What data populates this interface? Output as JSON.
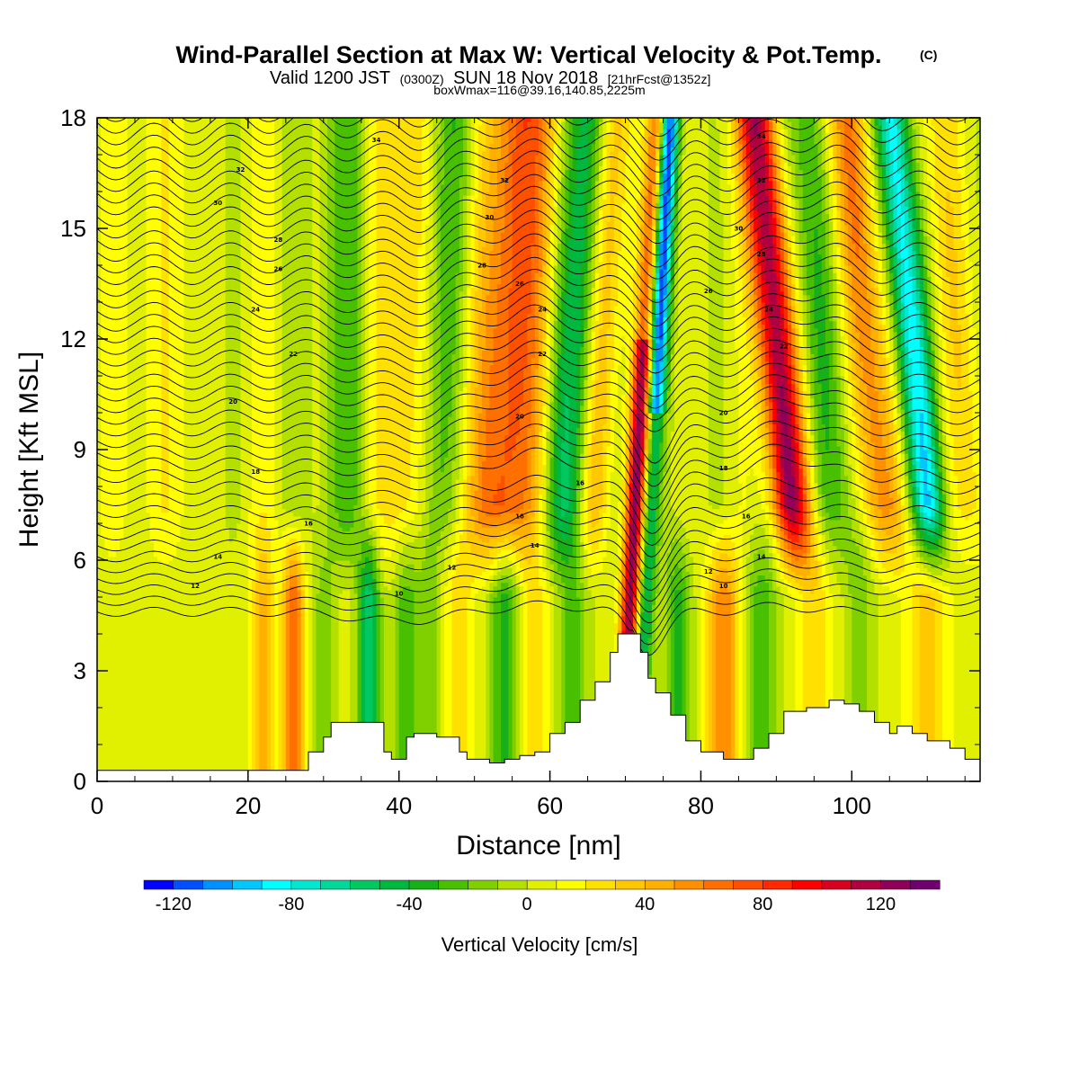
{
  "title": {
    "main": "Wind-Parallel Section at Max W: Vertical Velocity & Pot.Temp.",
    "main_sup": "(C)",
    "valid_prefix": "Valid 1200 JST",
    "valid_utc": "(0300Z)",
    "valid_date": "SUN 18 Nov 2018",
    "valid_fcst": "[21hrFcst@1352z]",
    "box": "boxWmax=116@39.16,140.85,2225m"
  },
  "chart_data": {
    "type": "heatmap",
    "xlabel": "Distance [nm]",
    "ylabel": "Height [Kft MSL]",
    "xlim": [
      0,
      117
    ],
    "ylim": [
      0,
      18
    ],
    "x_ticks": [
      0,
      20,
      40,
      60,
      80,
      100
    ],
    "y_ticks": [
      0,
      3,
      6,
      9,
      12,
      15,
      18
    ],
    "fill_variable": "Vertical Velocity [cm/s]",
    "contour_variable": "Pot.Temp.",
    "colorbar": {
      "title": "Vertical Velocity [cm/s]",
      "range": [
        -130,
        140
      ],
      "bin_width": 10,
      "tick_values": [
        -120,
        -80,
        -40,
        0,
        40,
        80,
        120
      ],
      "tick_labels": [
        "-120",
        "-80",
        "-40",
        "0",
        "40",
        "80",
        "120"
      ],
      "colors": [
        "#0000ff",
        "#0050ff",
        "#0090ff",
        "#00c8ff",
        "#00ffff",
        "#00e8d0",
        "#00d89a",
        "#00c860",
        "#00b840",
        "#18b018",
        "#48c000",
        "#80d000",
        "#b4e000",
        "#e0f000",
        "#ffff00",
        "#ffe000",
        "#ffc800",
        "#ffb000",
        "#ff9000",
        "#ff7000",
        "#ff5000",
        "#ff2800",
        "#ff0000",
        "#d80020",
        "#b00040",
        "#900058",
        "#700070"
      ]
    },
    "theta_contours": [
      {
        "x": 13,
        "y": 5.3,
        "label": "12"
      },
      {
        "x": 16,
        "y": 6.1,
        "label": "14"
      },
      {
        "x": 28,
        "y": 7.0,
        "label": "16"
      },
      {
        "x": 21,
        "y": 8.4,
        "label": "18"
      },
      {
        "x": 18,
        "y": 10.3,
        "label": "20"
      },
      {
        "x": 26,
        "y": 11.6,
        "label": "22"
      },
      {
        "x": 21,
        "y": 12.8,
        "label": "24"
      },
      {
        "x": 24,
        "y": 13.9,
        "label": "26"
      },
      {
        "x": 24,
        "y": 14.7,
        "label": "28"
      },
      {
        "x": 16,
        "y": 15.7,
        "label": "30"
      },
      {
        "x": 19,
        "y": 16.6,
        "label": "32"
      },
      {
        "x": 37,
        "y": 17.4,
        "label": "34"
      },
      {
        "x": 40,
        "y": 5.1,
        "label": "10"
      },
      {
        "x": 47,
        "y": 5.8,
        "label": "12"
      },
      {
        "x": 58,
        "y": 6.4,
        "label": "14"
      },
      {
        "x": 56,
        "y": 7.2,
        "label": "16"
      },
      {
        "x": 64,
        "y": 8.1,
        "label": "16"
      },
      {
        "x": 56,
        "y": 9.9,
        "label": "20"
      },
      {
        "x": 59,
        "y": 11.6,
        "label": "22"
      },
      {
        "x": 59,
        "y": 12.8,
        "label": "24"
      },
      {
        "x": 56,
        "y": 13.5,
        "label": "26"
      },
      {
        "x": 51,
        "y": 14.0,
        "label": "28"
      },
      {
        "x": 52,
        "y": 15.3,
        "label": "30"
      },
      {
        "x": 54,
        "y": 16.3,
        "label": "32"
      },
      {
        "x": 81,
        "y": 5.7,
        "label": "12"
      },
      {
        "x": 83,
        "y": 5.3,
        "label": "10"
      },
      {
        "x": 88,
        "y": 6.1,
        "label": "14"
      },
      {
        "x": 86,
        "y": 7.2,
        "label": "16"
      },
      {
        "x": 83,
        "y": 8.5,
        "label": "18"
      },
      {
        "x": 83,
        "y": 10.0,
        "label": "20"
      },
      {
        "x": 91,
        "y": 11.8,
        "label": "22"
      },
      {
        "x": 89,
        "y": 12.8,
        "label": "24"
      },
      {
        "x": 81,
        "y": 13.3,
        "label": "26"
      },
      {
        "x": 88,
        "y": 14.3,
        "label": "28"
      },
      {
        "x": 85,
        "y": 15.0,
        "label": "30"
      },
      {
        "x": 88,
        "y": 16.3,
        "label": "32"
      },
      {
        "x": 88,
        "y": 17.5,
        "label": "34"
      }
    ],
    "terrain": [
      [
        0,
        0.3
      ],
      [
        10,
        0.3
      ],
      [
        20,
        0.3
      ],
      [
        27,
        0.3
      ],
      [
        28,
        0.8
      ],
      [
        30,
        1.2
      ],
      [
        31,
        1.6
      ],
      [
        36,
        1.6
      ],
      [
        38,
        0.8
      ],
      [
        39,
        0.6
      ],
      [
        40,
        0.6
      ],
      [
        41,
        1.2
      ],
      [
        42,
        1.3
      ],
      [
        44,
        1.3
      ],
      [
        45,
        1.2
      ],
      [
        47,
        1.2
      ],
      [
        48,
        0.8
      ],
      [
        49,
        0.6
      ],
      [
        50,
        0.6
      ],
      [
        52,
        0.5
      ],
      [
        54,
        0.6
      ],
      [
        56,
        0.7
      ],
      [
        58,
        0.8
      ],
      [
        60,
        1.3
      ],
      [
        62,
        1.6
      ],
      [
        64,
        2.2
      ],
      [
        66,
        2.7
      ],
      [
        68,
        3.5
      ],
      [
        69,
        4.0
      ],
      [
        71,
        4.0
      ],
      [
        72,
        3.5
      ],
      [
        73,
        2.8
      ],
      [
        74,
        2.4
      ],
      [
        76,
        1.8
      ],
      [
        78,
        1.1
      ],
      [
        80,
        0.8
      ],
      [
        83,
        0.6
      ],
      [
        85,
        0.6
      ],
      [
        87,
        0.9
      ],
      [
        89,
        1.3
      ],
      [
        91,
        1.9
      ],
      [
        94,
        2.0
      ],
      [
        97,
        2.2
      ],
      [
        99,
        2.1
      ],
      [
        101,
        1.9
      ],
      [
        103,
        1.6
      ],
      [
        105,
        1.3
      ],
      [
        106,
        1.5
      ],
      [
        108,
        1.3
      ],
      [
        110,
        1.1
      ],
      [
        113,
        0.9
      ],
      [
        115,
        0.6
      ],
      [
        117,
        0.6
      ]
    ]
  }
}
